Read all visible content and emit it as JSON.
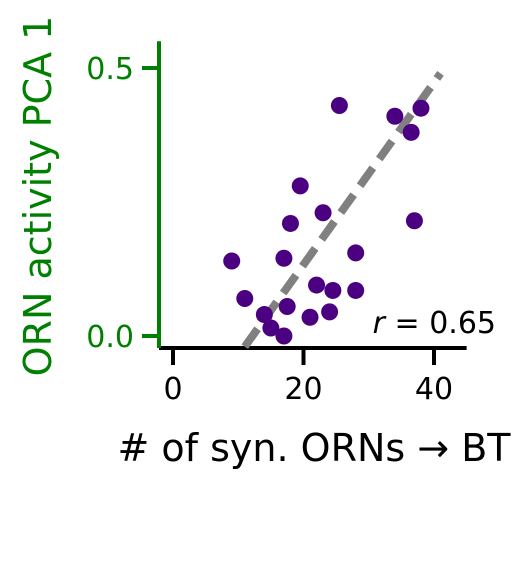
{
  "chart_data": {
    "type": "scatter",
    "title": "",
    "xlabel": "# of syn. ORNs → BT",
    "ylabel": "ORN activity PCA 1",
    "xlim": [
      -2,
      45
    ],
    "ylim": [
      -0.02,
      0.55
    ],
    "xticks": [
      0,
      20,
      40
    ],
    "xtick_labels": [
      "0",
      "20",
      "40"
    ],
    "yticks": [
      0.0,
      0.5
    ],
    "ytick_labels": [
      "0.0",
      "0.5"
    ],
    "grid": false,
    "legend": "none",
    "colors": {
      "points": "#4b0082",
      "fit_line": "#808080",
      "y_axis": "#008000",
      "x_axis": "#000000",
      "y_text": "#008000"
    },
    "points": [
      {
        "x": 9,
        "y": 0.14
      },
      {
        "x": 11,
        "y": 0.07
      },
      {
        "x": 14,
        "y": 0.04
      },
      {
        "x": 15,
        "y": 0.015
      },
      {
        "x": 17,
        "y": 0.0
      },
      {
        "x": 17,
        "y": 0.145
      },
      {
        "x": 17.5,
        "y": 0.055
      },
      {
        "x": 18,
        "y": 0.21
      },
      {
        "x": 19.5,
        "y": 0.28
      },
      {
        "x": 21,
        "y": 0.035
      },
      {
        "x": 22,
        "y": 0.095
      },
      {
        "x": 23,
        "y": 0.23
      },
      {
        "x": 24,
        "y": 0.045
      },
      {
        "x": 24.5,
        "y": 0.085
      },
      {
        "x": 25.5,
        "y": 0.43
      },
      {
        "x": 28,
        "y": 0.155
      },
      {
        "x": 28,
        "y": 0.085
      },
      {
        "x": 34,
        "y": 0.41
      },
      {
        "x": 36.5,
        "y": 0.38
      },
      {
        "x": 37,
        "y": 0.215
      },
      {
        "x": 38,
        "y": 0.425
      }
    ],
    "fit_line": {
      "x": [
        11,
        41
      ],
      "y": [
        -0.02,
        0.49
      ]
    },
    "annotation": {
      "italic": "r",
      "text": " = 0.65"
    }
  }
}
